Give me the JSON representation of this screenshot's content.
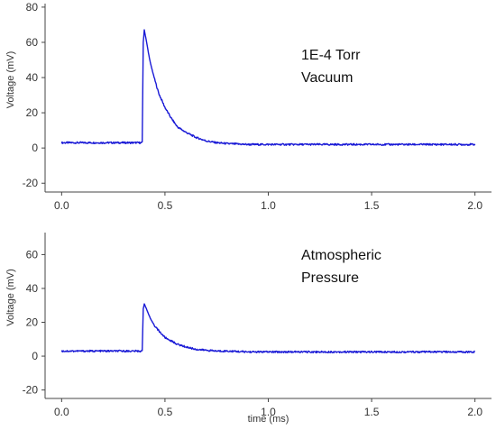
{
  "colors": {
    "trace": "#1a1ad6",
    "axis": "#444444",
    "text": "#333333"
  },
  "chart_data": [
    {
      "type": "line",
      "ylabel": "Voltage (mV)",
      "xlabel": "",
      "annotation_lines": [
        "1E-4 Torr",
        "Vacuum"
      ],
      "xlim": [
        -0.08,
        2.08
      ],
      "ylim": [
        -25,
        82
      ],
      "x_ticks": [
        0.0,
        0.5,
        1.0,
        1.5,
        2.0
      ],
      "x_tick_labels": [
        "0.0",
        "0.5",
        "1.0",
        "1.5",
        "2.0"
      ],
      "y_ticks": [
        -20,
        0,
        20,
        40,
        60,
        80
      ],
      "y_tick_labels": [
        "-20",
        "0",
        "20",
        "40",
        "60",
        "80"
      ],
      "series": [
        {
          "x": [
            0.0,
            0.05,
            0.1,
            0.15,
            0.2,
            0.25,
            0.3,
            0.35,
            0.39,
            0.395,
            0.4,
            0.41,
            0.42,
            0.43,
            0.45,
            0.47,
            0.5,
            0.53,
            0.56,
            0.6,
            0.65,
            0.7,
            0.75,
            0.8,
            0.9,
            1.0,
            1.2,
            1.4,
            1.6,
            1.8,
            2.0
          ],
          "y": [
            3,
            3,
            3,
            3,
            3,
            3,
            3,
            3,
            3,
            60,
            67,
            61,
            54,
            48,
            39,
            31,
            23,
            17,
            12,
            9,
            6,
            4,
            3,
            2.5,
            2,
            2,
            2,
            2,
            2,
            2,
            2
          ]
        }
      ]
    },
    {
      "type": "line",
      "ylabel": "Voltage (mV)",
      "xlabel": "time (ms)",
      "annotation_lines": [
        "Atmospheric",
        "Pressure"
      ],
      "xlim": [
        -0.08,
        2.08
      ],
      "ylim": [
        -25,
        73
      ],
      "x_ticks": [
        0.0,
        0.5,
        1.0,
        1.5,
        2.0
      ],
      "x_tick_labels": [
        "0.0",
        "0.5",
        "1.0",
        "1.5",
        "2.0"
      ],
      "y_ticks": [
        -20,
        0,
        20,
        40,
        60
      ],
      "y_tick_labels": [
        "-20",
        "0",
        "20",
        "40",
        "60"
      ],
      "series": [
        {
          "x": [
            0.0,
            0.05,
            0.1,
            0.15,
            0.2,
            0.25,
            0.3,
            0.35,
            0.39,
            0.395,
            0.4,
            0.41,
            0.42,
            0.43,
            0.45,
            0.47,
            0.5,
            0.53,
            0.56,
            0.6,
            0.65,
            0.7,
            0.75,
            0.8,
            0.9,
            1.0,
            1.2,
            1.4,
            1.6,
            1.8,
            2.0
          ],
          "y": [
            3,
            3,
            3,
            3,
            3,
            3,
            3,
            3,
            3,
            28,
            31,
            28,
            25,
            22,
            18,
            15,
            11,
            9,
            7,
            5.5,
            4,
            3.5,
            3,
            3,
            2.5,
            2.5,
            2.5,
            2.5,
            2.5,
            2.5,
            2.5
          ]
        }
      ]
    }
  ]
}
